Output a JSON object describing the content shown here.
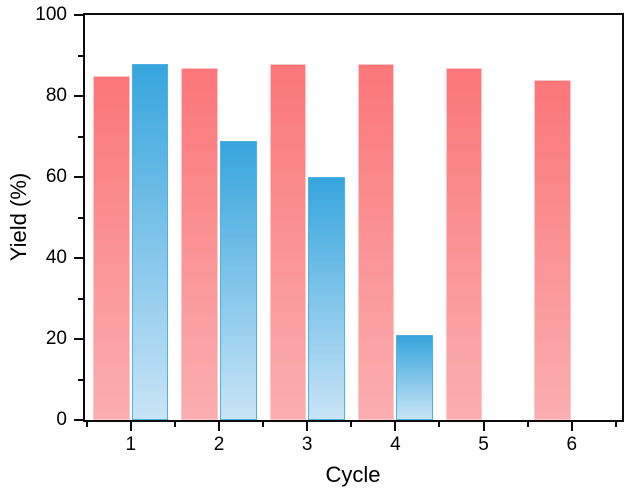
{
  "figure": {
    "background": "#ffffff",
    "axis_color": "#0c0c0c"
  },
  "chart_data": {
    "type": "bar",
    "title": "",
    "xlabel": "Cycle",
    "ylabel": "Yield (%)",
    "ylim": [
      0,
      100
    ],
    "xlim": [
      0.48,
      6.57
    ],
    "grid": false,
    "legend": "none",
    "categories": [
      1,
      2,
      3,
      4,
      5,
      6
    ],
    "series": [
      {
        "name": "red",
        "values": [
          85,
          87,
          88,
          88,
          87,
          84
        ],
        "color_top": "#fb7678",
        "color_bottom": "#fbaeb0",
        "border_color": "#fdc6c7"
      },
      {
        "name": "blue",
        "values": [
          88,
          69,
          60,
          21,
          null,
          null
        ],
        "color_top": "#36a5dd",
        "color_bottom": "#c9e4f6",
        "border_color": "#4fb0e1"
      }
    ],
    "yticks_major": [
      0,
      20,
      40,
      60,
      80,
      100
    ],
    "yticks_minor": [
      10,
      30,
      50,
      70,
      90
    ],
    "xticks_major": [
      1,
      2,
      3,
      4,
      5,
      6
    ],
    "xticks_minor": [
      0.5,
      1.5,
      2.5,
      3.5,
      4.5,
      5.5,
      6.5
    ],
    "bar_width_units": 0.415,
    "bar_gap_units": 0.012
  }
}
